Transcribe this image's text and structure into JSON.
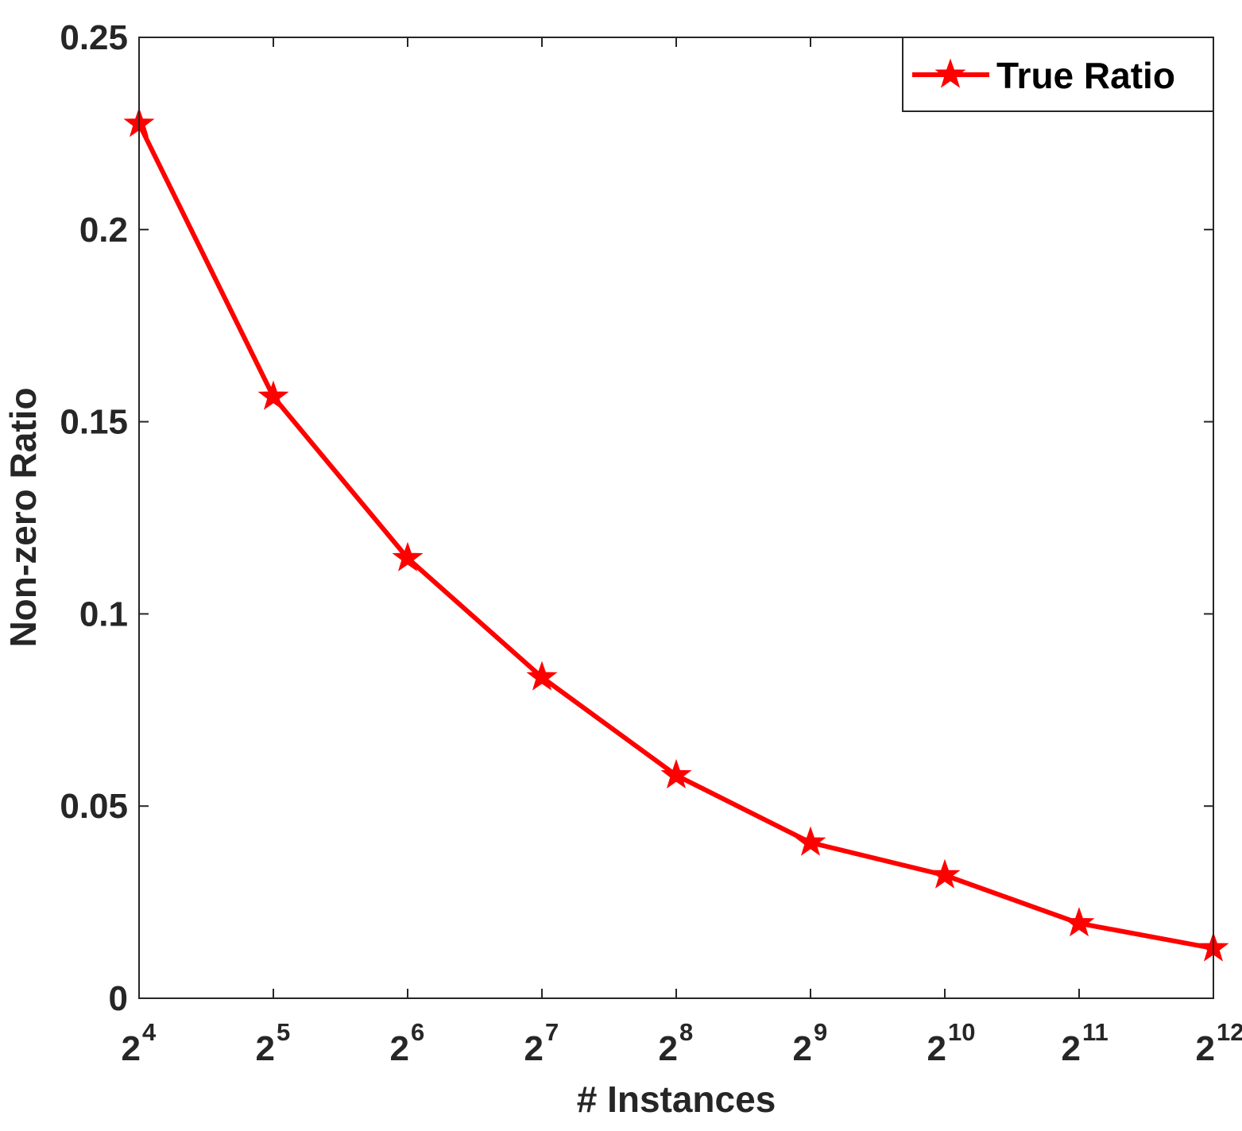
{
  "chart_data": {
    "type": "line",
    "xlabel": "# Instances",
    "ylabel": "Non-zero Ratio",
    "x_scale": "log2",
    "x_base": "2",
    "x_exponents": [
      "4",
      "5",
      "6",
      "7",
      "8",
      "9",
      "10",
      "11",
      "12"
    ],
    "xlim_exponent": [
      4,
      12
    ],
    "ylim": [
      0,
      0.25
    ],
    "yticks": [
      0,
      0.05,
      0.1,
      0.15,
      0.2,
      0.25
    ],
    "ytick_labels": [
      "0",
      "0.05",
      "0.1",
      "0.15",
      "0.2",
      "0.25"
    ],
    "grid": false,
    "legend_position": "top-right",
    "series": [
      {
        "name": "True Ratio",
        "color": "#ff0000",
        "marker": "star",
        "x": [
          16,
          32,
          64,
          128,
          256,
          512,
          1024,
          2048,
          4096
        ],
        "values": [
          0.2275,
          0.1565,
          0.1145,
          0.0835,
          0.058,
          0.0405,
          0.032,
          0.0195,
          0.013
        ]
      }
    ]
  }
}
